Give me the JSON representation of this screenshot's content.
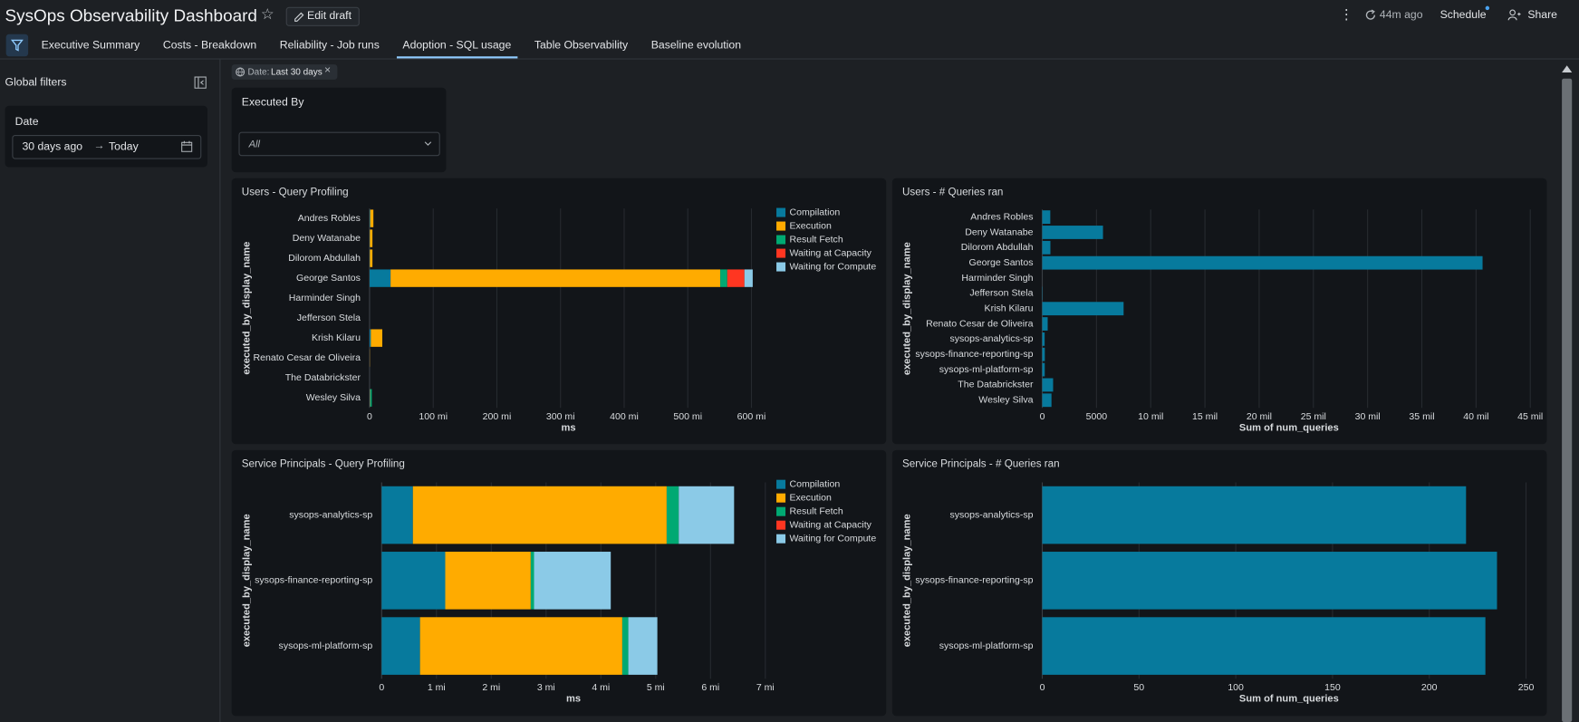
{
  "header": {
    "title": "SysOps Observability Dashboard",
    "edit_button": "Edit draft",
    "refresh": "44m ago",
    "schedule": "Schedule",
    "share": "Share"
  },
  "tabs": [
    "Executive Summary",
    "Costs - Breakdown",
    "Reliability - Job runs",
    "Adoption - SQL usage",
    "Table Observability",
    "Baseline evolution"
  ],
  "active_tab": 3,
  "sidebar": {
    "title": "Global filters",
    "date_filter": {
      "label": "Date",
      "from": "30 days ago",
      "to": "Today"
    }
  },
  "filter_chip": {
    "label": "Date:",
    "value": "Last 30 days"
  },
  "executed_by": {
    "label": "Executed By",
    "placeholder": "All"
  },
  "chart_data": [
    {
      "type": "bar",
      "orientation": "horizontal",
      "stacked": true,
      "title": "Users - Query Profiling",
      "x_label": "ms",
      "y_label": "executed_by_display_name",
      "categories": [
        "Andres Robles",
        "Deny Watanabe",
        "Dilorom Abdullah",
        "George Santos",
        "Harminder Singh",
        "Jefferson Stela",
        "Krish Kilaru",
        "Renato Cesar de Oliveira",
        "The Databrickster",
        "Wesley Silva"
      ],
      "series": [
        {
          "name": "Compilation",
          "color": "#077a9d",
          "values": [
            1000000,
            500000,
            500000,
            33000000,
            0,
            0,
            2000000,
            0,
            0,
            1000000
          ]
        },
        {
          "name": "Execution",
          "color": "#ffab00",
          "values": [
            5000000,
            4000000,
            4000000,
            518000000,
            0,
            0,
            18000000,
            300000,
            0,
            500000
          ]
        },
        {
          "name": "Result Fetch",
          "color": "#00a972",
          "values": [
            0,
            0,
            0,
            11000000,
            0,
            0,
            0,
            0,
            0,
            2000000
          ]
        },
        {
          "name": "Waiting at Capacity",
          "color": "#ff3621",
          "values": [
            0,
            0,
            0,
            27000000,
            0,
            0,
            0,
            0,
            0,
            0
          ]
        },
        {
          "name": "Waiting for Compute",
          "color": "#8bcae7",
          "values": [
            0,
            0,
            0,
            13000000,
            0,
            0,
            0,
            0,
            0,
            0
          ]
        }
      ],
      "xlim": [
        0,
        625000000
      ],
      "xticks": [
        0,
        {
          "value": 100000000,
          "label": "100 mi"
        },
        {
          "value": 200000000,
          "label": "200 mi"
        },
        {
          "value": 300000000,
          "label": "300 mi"
        },
        {
          "value": 400000000,
          "label": "400 mi"
        },
        {
          "value": 500000000,
          "label": "500 mi"
        },
        {
          "value": 600000000,
          "label": "600 mi"
        }
      ],
      "grid": true,
      "legend": "right"
    },
    {
      "type": "bar",
      "orientation": "horizontal",
      "title": "Users - # Queries ran",
      "x_label": "Sum of num_queries",
      "y_label": "executed_by_display_name",
      "categories": [
        "Andres Robles",
        "Deny Watanabe",
        "Dilorom Abdullah",
        "George Santos",
        "Harminder Singh",
        "Jefferson Stela",
        "Krish Kilaru",
        "Renato Cesar de Oliveira",
        "sysops-analytics-sp",
        "sysops-finance-reporting-sp",
        "sysops-ml-platform-sp",
        "The Databrickster",
        "Wesley Silva"
      ],
      "values": [
        740,
        5600,
        750,
        40600,
        0,
        30,
        7500,
        500,
        219,
        235,
        229,
        1000,
        850
      ],
      "color": "#077a9d",
      "xlim": [
        0,
        45500
      ],
      "xticks": [
        0,
        5000,
        {
          "value": 10000,
          "label": "10 mil"
        },
        {
          "value": 15000,
          "label": "15 mil"
        },
        {
          "value": 20000,
          "label": "20 mil"
        },
        {
          "value": 25000,
          "label": "25 mil"
        },
        {
          "value": 30000,
          "label": "30 mil"
        },
        {
          "value": 35000,
          "label": "35 mil"
        },
        {
          "value": 40000,
          "label": "40 mil"
        },
        {
          "value": 45000,
          "label": "45 mil"
        }
      ],
      "grid": true
    },
    {
      "type": "bar",
      "orientation": "horizontal",
      "stacked": true,
      "title": "Service Principals - Query Profiling",
      "x_label": "ms",
      "y_label": "executed_by_display_name",
      "categories": [
        "sysops-analytics-sp",
        "sysops-finance-reporting-sp",
        "sysops-ml-platform-sp"
      ],
      "series": [
        {
          "name": "Compilation",
          "color": "#077a9d",
          "values": [
            570000,
            1160000,
            700000
          ]
        },
        {
          "name": "Execution",
          "color": "#ffab00",
          "values": [
            4630000,
            1560000,
            3690000
          ]
        },
        {
          "name": "Result Fetch",
          "color": "#00a972",
          "values": [
            220000,
            60000,
            110000
          ]
        },
        {
          "name": "Waiting at Capacity",
          "color": "#ff3621",
          "values": [
            0,
            0,
            0
          ]
        },
        {
          "name": "Waiting for Compute",
          "color": "#8bcae7",
          "values": [
            1010000,
            1400000,
            530000
          ]
        }
      ],
      "xlim": [
        0,
        7000000
      ],
      "xticks": [
        0,
        {
          "value": 1000000,
          "label": "1 mi"
        },
        {
          "value": 2000000,
          "label": "2 mi"
        },
        {
          "value": 3000000,
          "label": "3 mi"
        },
        {
          "value": 4000000,
          "label": "4 mi"
        },
        {
          "value": 5000000,
          "label": "5 mi"
        },
        {
          "value": 6000000,
          "label": "6 mi"
        },
        {
          "value": 7000000,
          "label": "7 mi"
        }
      ],
      "grid": true,
      "legend": "right"
    },
    {
      "type": "bar",
      "orientation": "horizontal",
      "title": "Service Principals - # Queries ran",
      "x_label": "Sum of num_queries",
      "y_label": "executed_by_display_name",
      "categories": [
        "sysops-analytics-sp",
        "sysops-finance-reporting-sp",
        "sysops-ml-platform-sp"
      ],
      "values": [
        219,
        235,
        229
      ],
      "color": "#077a9d",
      "xlim": [
        0,
        255
      ],
      "xticks": [
        0,
        50,
        100,
        150,
        200,
        250
      ],
      "grid": true
    }
  ]
}
